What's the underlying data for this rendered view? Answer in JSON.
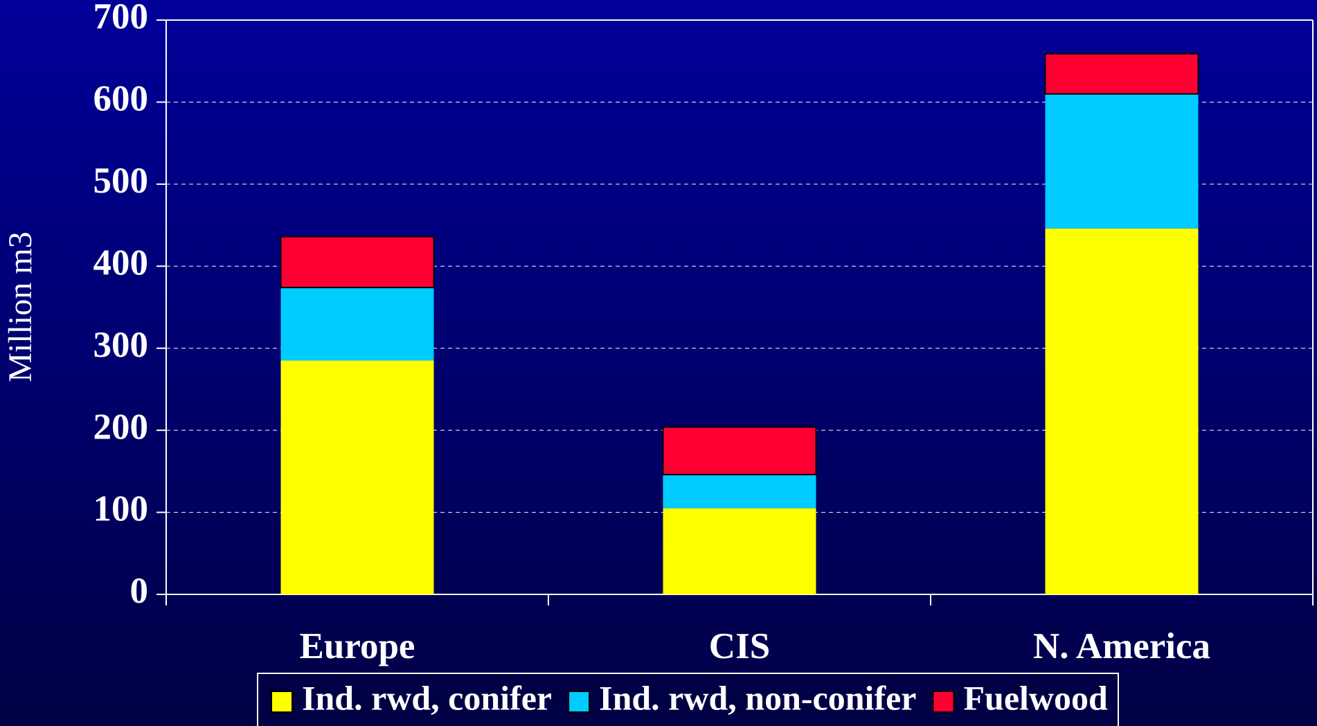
{
  "chart_data": {
    "type": "stacked_bar",
    "y_label": "Million m3",
    "categories": [
      "Europe",
      "CIS",
      "N. America"
    ],
    "series": [
      {
        "name": "Ind. rwd, conifer",
        "color": "#ffff00",
        "values": [
          285,
          105,
          446
        ]
      },
      {
        "name": "Ind. rwd, non-conifer",
        "color": "#00ccff",
        "values": [
          89,
          41,
          164
        ]
      },
      {
        "name": "Fuelwood",
        "color": "#ff0033",
        "values": [
          62,
          58,
          49
        ]
      }
    ],
    "ylim": [
      0,
      700
    ],
    "yticks": [
      0,
      100,
      200,
      300,
      400,
      500,
      600,
      700
    ],
    "grid": true,
    "legend": "bottom"
  }
}
